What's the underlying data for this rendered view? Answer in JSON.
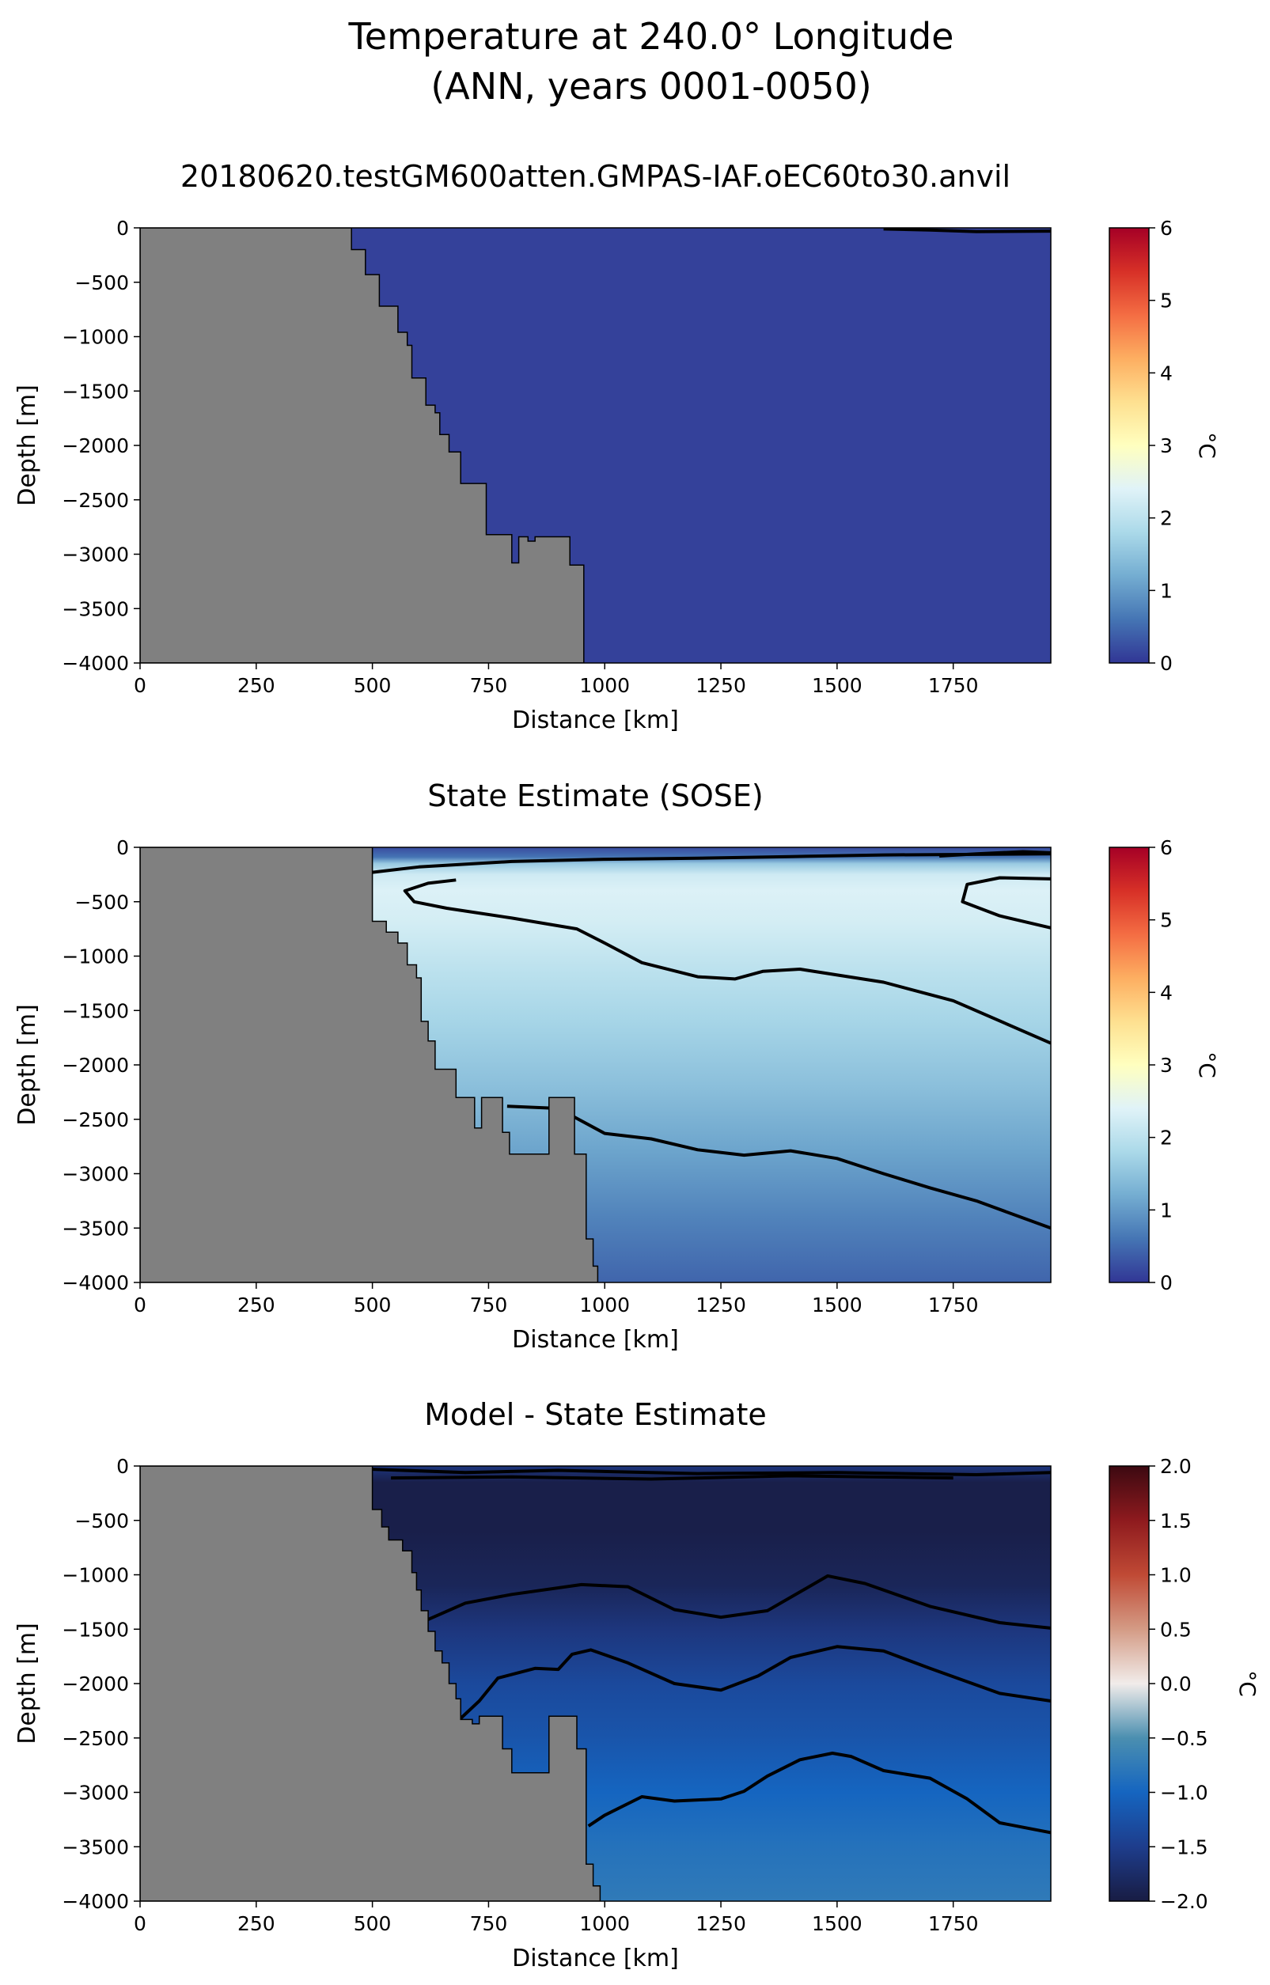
{
  "figure": {
    "title_line1": "Temperature at 240.0° Longitude",
    "title_line2": "(ANN, years 0001-0050)"
  },
  "chart_data": [
    {
      "type": "heatmap",
      "title": "20180620.testGM600atten.GMPAS-IAF.oEC60to30.anvil",
      "xlabel": "Distance [km]",
      "ylabel": "Depth [m]",
      "xlim": [
        0,
        1960
      ],
      "ylim": [
        -4000,
        0
      ],
      "xticks": [
        "0",
        "250",
        "500",
        "750",
        "1000",
        "1250",
        "1500",
        "1750"
      ],
      "yticks": [
        "0",
        "−500",
        "−1000",
        "−1500",
        "−2000",
        "−2500",
        "−3000",
        "−3500",
        "−4000"
      ],
      "colorbar": {
        "label": "°C",
        "min": 0,
        "max": 6,
        "ticks": [
          "0",
          "1",
          "2",
          "3",
          "4",
          "5",
          "6"
        ],
        "colormap": "RdYlBu_r"
      },
      "bathymetry": [
        [
          0,
          0
        ],
        [
          455,
          0
        ],
        [
          455,
          -200
        ],
        [
          485,
          -200
        ],
        [
          485,
          -430
        ],
        [
          515,
          -430
        ],
        [
          515,
          -720
        ],
        [
          555,
          -720
        ],
        [
          555,
          -960
        ],
        [
          575,
          -960
        ],
        [
          575,
          -1080
        ],
        [
          585,
          -1080
        ],
        [
          585,
          -1380
        ],
        [
          615,
          -1380
        ],
        [
          615,
          -1630
        ],
        [
          635,
          -1630
        ],
        [
          635,
          -1700
        ],
        [
          645,
          -1700
        ],
        [
          645,
          -1900
        ],
        [
          665,
          -1900
        ],
        [
          665,
          -2060
        ],
        [
          690,
          -2060
        ],
        [
          690,
          -2350
        ],
        [
          745,
          -2350
        ],
        [
          745,
          -2820
        ],
        [
          800,
          -2820
        ],
        [
          800,
          -3080
        ],
        [
          815,
          -3080
        ],
        [
          815,
          -2840
        ],
        [
          835,
          -2840
        ],
        [
          835,
          -2880
        ],
        [
          850,
          -2880
        ],
        [
          850,
          -2840
        ],
        [
          925,
          -2840
        ],
        [
          925,
          -3100
        ],
        [
          955,
          -3100
        ],
        [
          955,
          -4000
        ]
      ],
      "field": {
        "type": "uniform",
        "value": 0.1
      },
      "contours": [
        [
          [
            1600,
            -10
          ],
          [
            1700,
            -20
          ],
          [
            1800,
            -35
          ],
          [
            1960,
            -30
          ]
        ]
      ]
    },
    {
      "type": "heatmap",
      "title": "State Estimate (SOSE)",
      "xlabel": "Distance [km]",
      "ylabel": "Depth [m]",
      "xlim": [
        0,
        1960
      ],
      "ylim": [
        -4000,
        0
      ],
      "xticks": [
        "0",
        "250",
        "500",
        "750",
        "1000",
        "1250",
        "1500",
        "1750"
      ],
      "yticks": [
        "0",
        "−500",
        "−1000",
        "−1500",
        "−2000",
        "−2500",
        "−3000",
        "−3500",
        "−4000"
      ],
      "colorbar": {
        "label": "°C",
        "min": 0,
        "max": 6,
        "ticks": [
          "0",
          "1",
          "2",
          "3",
          "4",
          "5",
          "6"
        ],
        "colormap": "RdYlBu_r"
      },
      "bathymetry": [
        [
          0,
          0
        ],
        [
          500,
          0
        ],
        [
          500,
          -680
        ],
        [
          530,
          -680
        ],
        [
          530,
          -780
        ],
        [
          555,
          -780
        ],
        [
          555,
          -880
        ],
        [
          575,
          -880
        ],
        [
          575,
          -1080
        ],
        [
          595,
          -1080
        ],
        [
          595,
          -1200
        ],
        [
          605,
          -1200
        ],
        [
          605,
          -1600
        ],
        [
          620,
          -1600
        ],
        [
          620,
          -1780
        ],
        [
          635,
          -1780
        ],
        [
          635,
          -2040
        ],
        [
          680,
          -2040
        ],
        [
          680,
          -2300
        ],
        [
          720,
          -2300
        ],
        [
          720,
          -2580
        ],
        [
          735,
          -2580
        ],
        [
          735,
          -2300
        ],
        [
          780,
          -2300
        ],
        [
          780,
          -2620
        ],
        [
          795,
          -2620
        ],
        [
          795,
          -2820
        ],
        [
          880,
          -2820
        ],
        [
          880,
          -2300
        ],
        [
          935,
          -2300
        ],
        [
          935,
          -2820
        ],
        [
          960,
          -2820
        ],
        [
          960,
          -3600
        ],
        [
          975,
          -3600
        ],
        [
          975,
          -3850
        ],
        [
          985,
          -3850
        ],
        [
          985,
          -4000
        ]
      ],
      "field": {
        "type": "profile",
        "depths": [
          0,
          -90,
          -150,
          -250,
          -400,
          -700,
          -1100,
          -1600,
          -2200,
          -2800,
          -3400,
          -4000
        ],
        "values": [
          0.2,
          0.6,
          1.6,
          2.2,
          2.35,
          2.25,
          2.0,
          1.75,
          1.45,
          1.1,
          0.75,
          0.45
        ]
      },
      "contours": [
        [
          [
            500,
            -230
          ],
          [
            600,
            -180
          ],
          [
            800,
            -130
          ],
          [
            1000,
            -110
          ],
          [
            1200,
            -100
          ],
          [
            1400,
            -85
          ],
          [
            1600,
            -70
          ],
          [
            1960,
            -60
          ]
        ],
        [
          [
            1720,
            -80
          ],
          [
            1800,
            -60
          ],
          [
            1900,
            -40
          ],
          [
            1960,
            -50
          ]
        ],
        [
          [
            680,
            -300
          ],
          [
            620,
            -330
          ],
          [
            570,
            -400
          ],
          [
            590,
            -500
          ],
          [
            660,
            -560
          ],
          [
            800,
            -650
          ],
          [
            940,
            -750
          ],
          [
            1000,
            -880
          ],
          [
            1080,
            -1060
          ],
          [
            1200,
            -1190
          ],
          [
            1280,
            -1210
          ],
          [
            1340,
            -1140
          ],
          [
            1420,
            -1120
          ],
          [
            1600,
            -1240
          ],
          [
            1750,
            -1410
          ],
          [
            1960,
            -1800
          ]
        ],
        [
          [
            1960,
            -740
          ],
          [
            1850,
            -630
          ],
          [
            1770,
            -500
          ],
          [
            1780,
            -340
          ],
          [
            1850,
            -280
          ],
          [
            1960,
            -290
          ]
        ],
        [
          [
            790,
            -2380
          ],
          [
            900,
            -2400
          ],
          [
            1000,
            -2630
          ],
          [
            1100,
            -2680
          ],
          [
            1200,
            -2780
          ],
          [
            1300,
            -2830
          ],
          [
            1400,
            -2790
          ],
          [
            1500,
            -2860
          ],
          [
            1600,
            -3000
          ],
          [
            1700,
            -3130
          ],
          [
            1800,
            -3250
          ],
          [
            1960,
            -3500
          ]
        ]
      ]
    },
    {
      "type": "heatmap",
      "title": "Model - State Estimate",
      "xlabel": "Distance [km]",
      "ylabel": "Depth [m]",
      "xlim": [
        0,
        1960
      ],
      "ylim": [
        -4000,
        0
      ],
      "xticks": [
        "0",
        "250",
        "500",
        "750",
        "1000",
        "1250",
        "1500",
        "1750"
      ],
      "yticks": [
        "0",
        "−500",
        "−1000",
        "−1500",
        "−2000",
        "−2500",
        "−3000",
        "−3500",
        "−4000"
      ],
      "colorbar": {
        "label": "°C",
        "min": -2.0,
        "max": 2.0,
        "ticks": [
          "−2.0",
          "−1.5",
          "−1.0",
          "−0.5",
          "0.0",
          "0.5",
          "1.0",
          "1.5",
          "2.0"
        ],
        "colormap": "balance"
      },
      "bathymetry": [
        [
          0,
          0
        ],
        [
          500,
          0
        ],
        [
          500,
          -400
        ],
        [
          520,
          -400
        ],
        [
          520,
          -560
        ],
        [
          535,
          -560
        ],
        [
          535,
          -680
        ],
        [
          565,
          -680
        ],
        [
          565,
          -780
        ],
        [
          585,
          -780
        ],
        [
          585,
          -980
        ],
        [
          595,
          -980
        ],
        [
          595,
          -1140
        ],
        [
          605,
          -1140
        ],
        [
          605,
          -1330
        ],
        [
          620,
          -1330
        ],
        [
          620,
          -1520
        ],
        [
          635,
          -1520
        ],
        [
          635,
          -1700
        ],
        [
          650,
          -1700
        ],
        [
          650,
          -1810
        ],
        [
          665,
          -1810
        ],
        [
          665,
          -2000
        ],
        [
          680,
          -2000
        ],
        [
          680,
          -2140
        ],
        [
          690,
          -2140
        ],
        [
          690,
          -2330
        ],
        [
          715,
          -2330
        ],
        [
          715,
          -2370
        ],
        [
          730,
          -2370
        ],
        [
          730,
          -2300
        ],
        [
          780,
          -2300
        ],
        [
          780,
          -2600
        ],
        [
          800,
          -2600
        ],
        [
          800,
          -2820
        ],
        [
          880,
          -2820
        ],
        [
          880,
          -2300
        ],
        [
          940,
          -2300
        ],
        [
          940,
          -2600
        ],
        [
          960,
          -2600
        ],
        [
          960,
          -3660
        ],
        [
          975,
          -3660
        ],
        [
          975,
          -3860
        ],
        [
          990,
          -3860
        ],
        [
          990,
          -4000
        ]
      ],
      "field": {
        "type": "profile",
        "depths": [
          0,
          -150,
          -600,
          -1100,
          -1500,
          -2000,
          -2500,
          -3000,
          -3500,
          -4000
        ],
        "values": [
          -1.6,
          -1.95,
          -1.95,
          -1.85,
          -1.6,
          -1.35,
          -1.2,
          -1.0,
          -0.85,
          -0.75
        ]
      },
      "contours": [
        [
          [
            500,
            -30
          ],
          [
            700,
            -60
          ],
          [
            900,
            -40
          ],
          [
            1200,
            -70
          ],
          [
            1500,
            -60
          ],
          [
            1800,
            -80
          ],
          [
            1960,
            -60
          ]
        ],
        [
          [
            540,
            -110
          ],
          [
            800,
            -100
          ],
          [
            1100,
            -120
          ],
          [
            1400,
            -90
          ],
          [
            1750,
            -110
          ]
        ],
        [
          [
            610,
            -1430
          ],
          [
            700,
            -1260
          ],
          [
            800,
            -1180
          ],
          [
            950,
            -1090
          ],
          [
            1050,
            -1110
          ],
          [
            1150,
            -1320
          ],
          [
            1250,
            -1390
          ],
          [
            1350,
            -1330
          ],
          [
            1480,
            -1010
          ],
          [
            1560,
            -1080
          ],
          [
            1700,
            -1290
          ],
          [
            1850,
            -1440
          ],
          [
            1960,
            -1490
          ]
        ],
        [
          [
            690,
            -2320
          ],
          [
            730,
            -2160
          ],
          [
            770,
            -1950
          ],
          [
            850,
            -1860
          ],
          [
            900,
            -1870
          ],
          [
            930,
            -1730
          ],
          [
            970,
            -1690
          ],
          [
            1050,
            -1810
          ],
          [
            1150,
            -2000
          ],
          [
            1250,
            -2060
          ],
          [
            1330,
            -1930
          ],
          [
            1400,
            -1760
          ],
          [
            1500,
            -1660
          ],
          [
            1600,
            -1700
          ],
          [
            1700,
            -1860
          ],
          [
            1850,
            -2090
          ],
          [
            1960,
            -2160
          ]
        ],
        [
          [
            965,
            -3310
          ],
          [
            1000,
            -3210
          ],
          [
            1080,
            -3040
          ],
          [
            1150,
            -3080
          ],
          [
            1250,
            -3060
          ],
          [
            1300,
            -2990
          ],
          [
            1350,
            -2850
          ],
          [
            1420,
            -2700
          ],
          [
            1490,
            -2640
          ],
          [
            1530,
            -2670
          ],
          [
            1600,
            -2800
          ],
          [
            1700,
            -2870
          ],
          [
            1780,
            -3060
          ],
          [
            1850,
            -3280
          ],
          [
            1960,
            -3370
          ]
        ]
      ]
    }
  ]
}
